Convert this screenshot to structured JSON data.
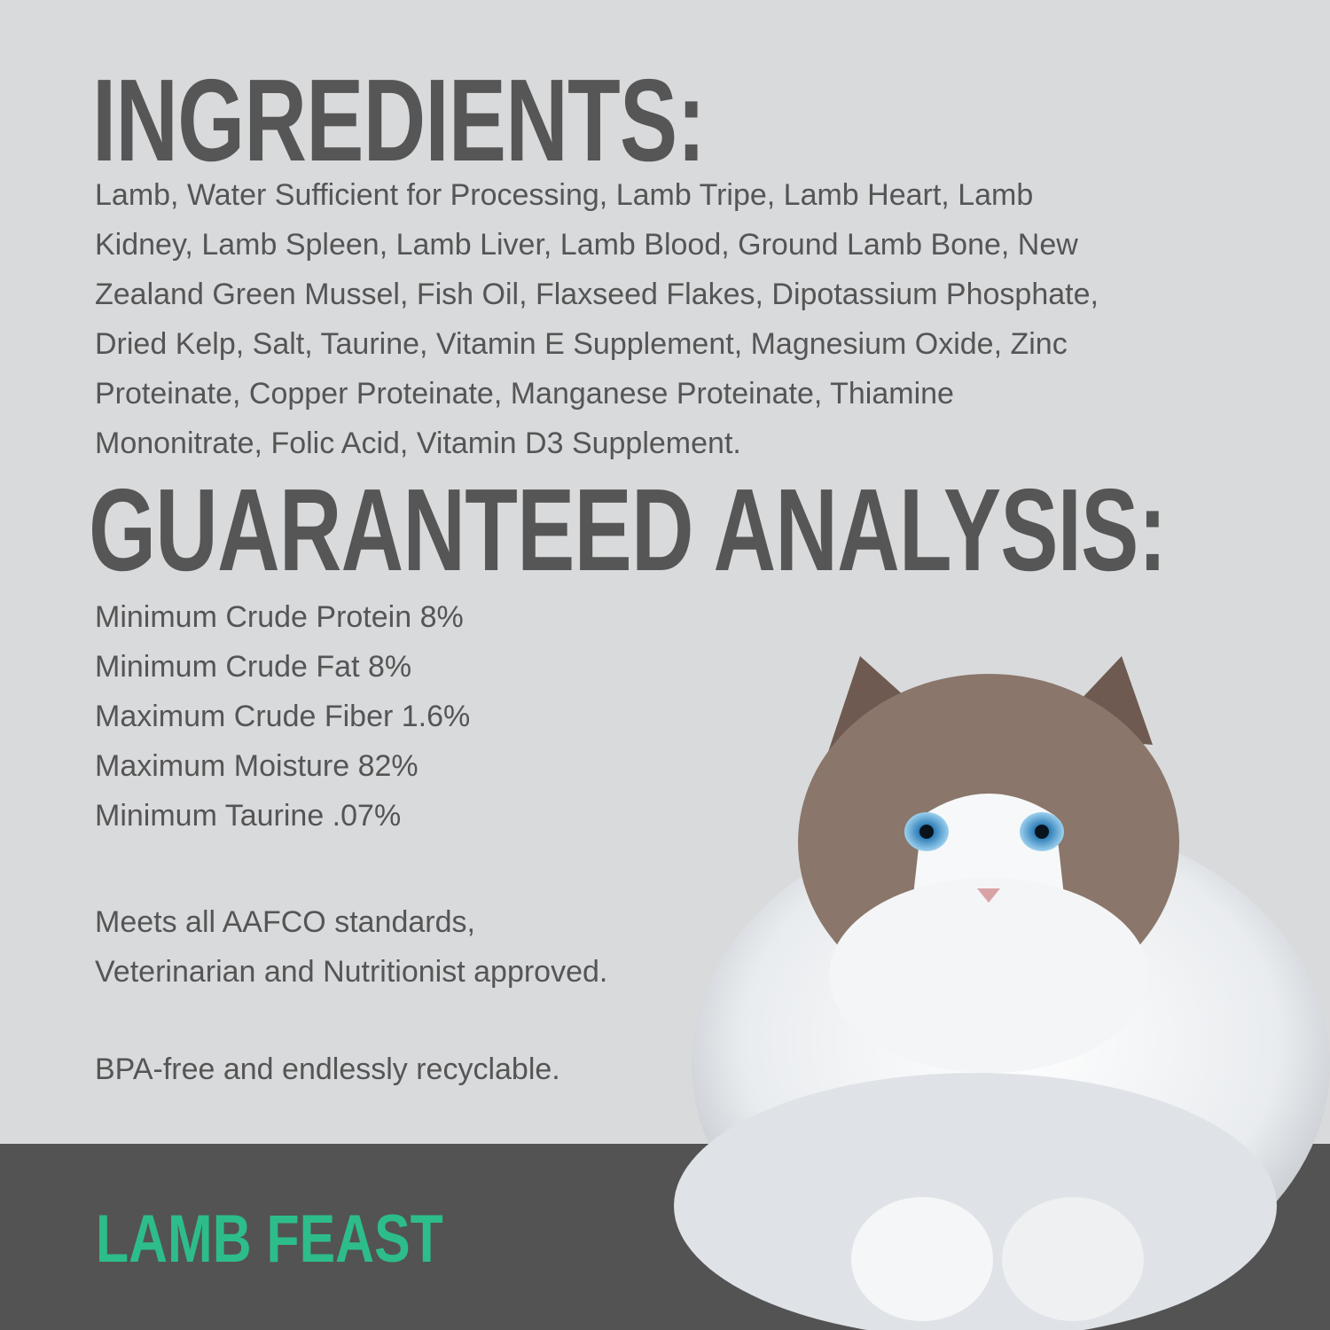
{
  "ingredients": {
    "heading": "INGREDIENTS:",
    "lines": [
      "Lamb, Water Sufficient for Processing, Lamb Tripe, Lamb Heart, Lamb",
      "Kidney, Lamb Spleen, Lamb Liver, Lamb Blood, Ground Lamb Bone, New",
      "Zealand Green Mussel, Fish Oil, Flaxseed Flakes, Dipotassium Phosphate,",
      "Dried Kelp, Salt, Taurine, Vitamin E Supplement, Magnesium Oxide, Zinc",
      "Proteinate, Copper Proteinate, Manganese Proteinate, Thiamine",
      "Mononitrate, Folic Acid, Vitamin D3 Supplement."
    ]
  },
  "analysis": {
    "heading": "GUARANTEED ANALYSIS:",
    "items": [
      "Minimum Crude Protein 8%",
      "Minimum Crude Fat 8%",
      "Maximum Crude Fiber 1.6%",
      "Maximum Moisture 82%",
      "Minimum Taurine .07%"
    ]
  },
  "notes": {
    "standards": [
      "Meets all AAFCO standards,",
      "Veterinarian and Nutritionist approved."
    ],
    "packaging": "BPA-free and endlessly recyclable."
  },
  "product_name": "LAMB FEAST",
  "colors": {
    "background": "#d9dadb",
    "text": "#555556",
    "bar": "#535353",
    "accent": "#2dbd8a"
  },
  "image": "ragdoll-cat-photo"
}
